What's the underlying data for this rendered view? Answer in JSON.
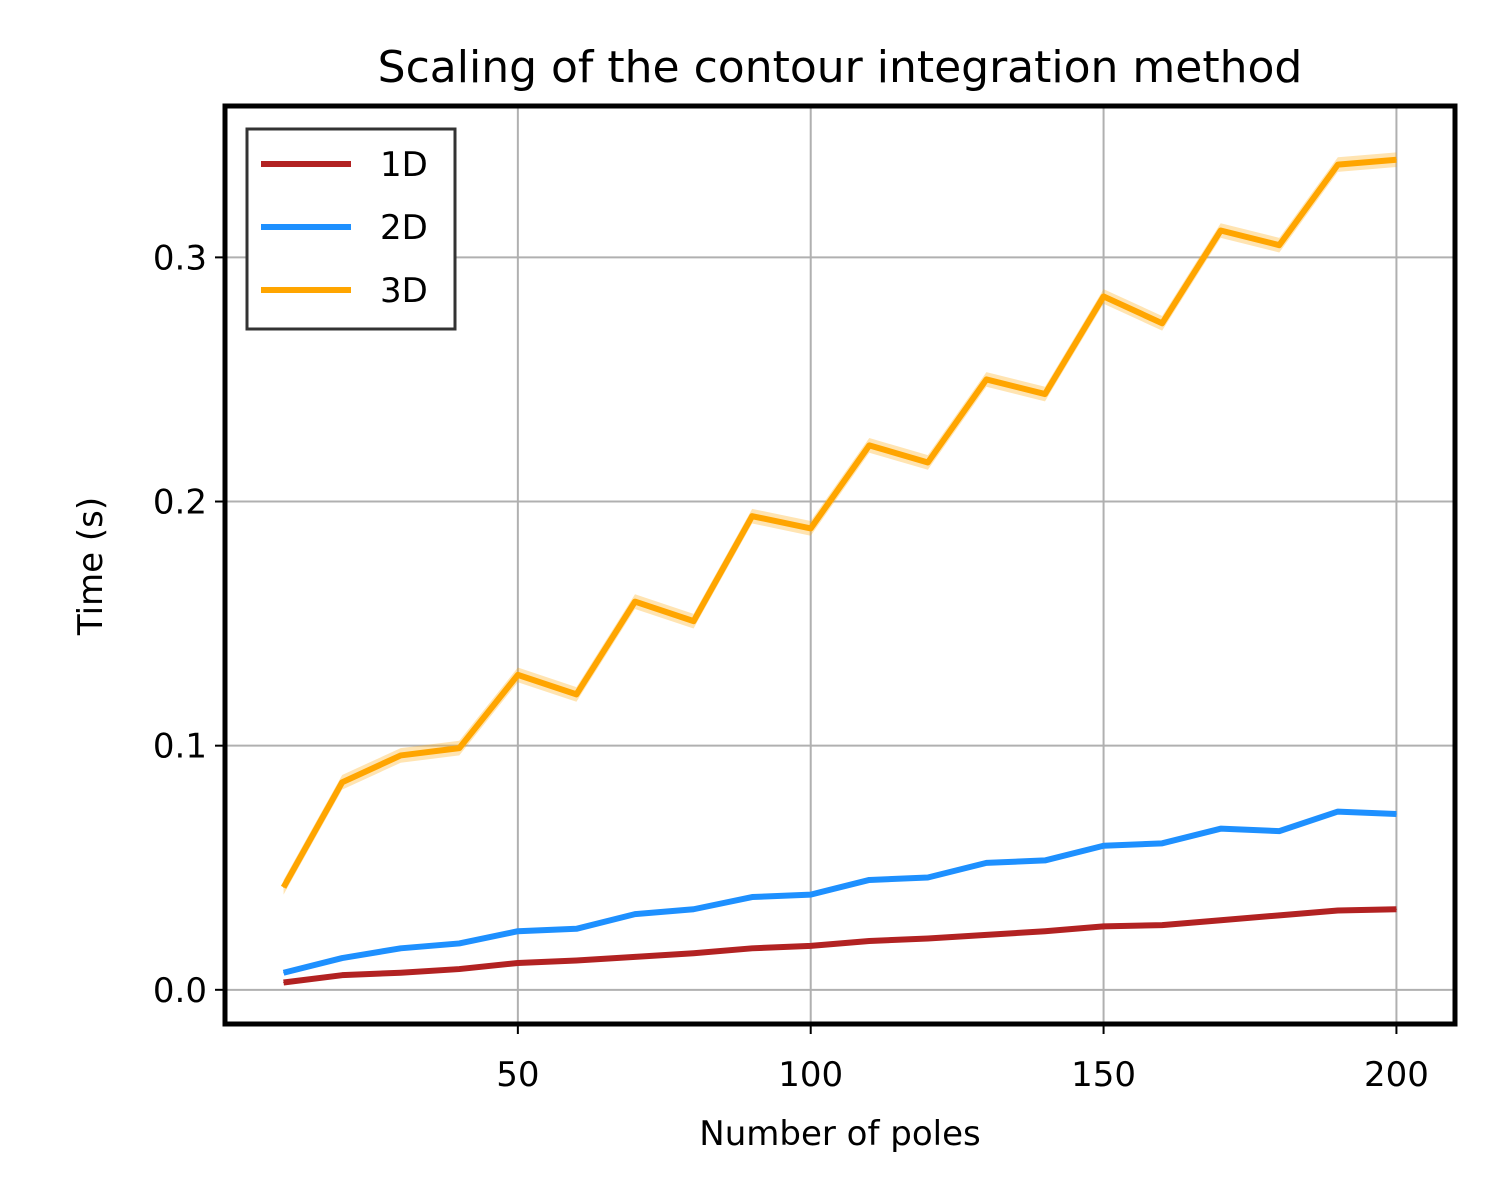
{
  "chart_data": {
    "type": "line",
    "title": "Scaling of the contour integration method",
    "xlabel": "Number of poles",
    "ylabel": "Time (s)",
    "xlim": [
      0,
      210
    ],
    "ylim": [
      -0.014,
      0.362
    ],
    "xticks": [
      50,
      100,
      150,
      200
    ],
    "yticks": [
      0.0,
      0.1,
      0.2,
      0.3
    ],
    "xtick_labels": [
      "50",
      "100",
      "150",
      "200"
    ],
    "ytick_labels": [
      "0.0",
      "0.1",
      "0.2",
      "0.3"
    ],
    "grid": true,
    "legend_position": "top-left",
    "x": [
      10,
      20,
      30,
      40,
      50,
      60,
      70,
      80,
      90,
      100,
      110,
      120,
      130,
      140,
      150,
      160,
      170,
      180,
      190,
      200
    ],
    "series": [
      {
        "name": "1D",
        "color": "#b22222",
        "values": [
          0.003,
          0.006,
          0.007,
          0.0085,
          0.011,
          0.012,
          0.0135,
          0.015,
          0.017,
          0.018,
          0.02,
          0.021,
          0.0225,
          0.024,
          0.026,
          0.0265,
          0.0285,
          0.0305,
          0.0325,
          0.033
        ]
      },
      {
        "name": "2D",
        "color": "#1e90ff",
        "values": [
          0.007,
          0.013,
          0.017,
          0.019,
          0.024,
          0.025,
          0.031,
          0.033,
          0.038,
          0.039,
          0.045,
          0.046,
          0.052,
          0.053,
          0.059,
          0.06,
          0.066,
          0.065,
          0.073,
          0.072
        ]
      },
      {
        "name": "3D",
        "color": "#ffa500",
        "values": [
          0.042,
          0.085,
          0.096,
          0.099,
          0.129,
          0.121,
          0.159,
          0.151,
          0.194,
          0.189,
          0.223,
          0.216,
          0.25,
          0.244,
          0.284,
          0.273,
          0.311,
          0.305,
          0.338,
          0.34
        ],
        "band": 0.003
      }
    ]
  }
}
